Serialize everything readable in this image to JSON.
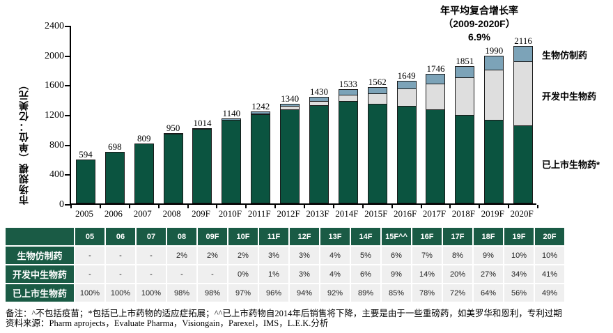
{
  "annotation": {
    "line1": "年平均复合增长率",
    "line2": "（2009-2020F）",
    "line3": "6.9%"
  },
  "y_axis": {
    "title": "市场规模（单位：亿美元）",
    "ticks": [
      0,
      400,
      800,
      1200,
      1600,
      2000,
      2400
    ]
  },
  "legend": {
    "biosimilar": "生物仿制药",
    "in_development": "开发中生物药",
    "marketed": "已上市生物药*"
  },
  "chart_data": {
    "type": "bar",
    "stacked": true,
    "title": "",
    "xlabel": "",
    "ylabel": "市场规模（单位：亿美元）",
    "ylim": [
      0,
      2400
    ],
    "grid": false,
    "legend_position": "right",
    "categories": [
      "2005",
      "2006",
      "2007",
      "2008",
      "209F",
      "2010F",
      "2011F",
      "2012F",
      "2013F",
      "2014F",
      "2015F",
      "2016F",
      "2017F",
      "2018F",
      "2019F",
      "2020F"
    ],
    "totals": [
      594,
      698,
      809,
      950,
      1014,
      1140,
      1242,
      1340,
      1430,
      1533,
      1562,
      1649,
      1746,
      1851,
      1990,
      2116
    ],
    "cagr_note": "年平均复合增长率（2009-2020F）6.9%",
    "series": [
      {
        "name": "已上市生物药*",
        "color": "#0B5440",
        "pct": [
          100,
          100,
          100,
          98,
          98,
          97,
          96,
          94,
          92,
          89,
          85,
          78,
          72,
          64,
          56,
          49
        ]
      },
      {
        "name": "开发中生物药",
        "color": "#DEDEDE",
        "pct": [
          0,
          0,
          0,
          0,
          0,
          0,
          1,
          3,
          4,
          6,
          9,
          14,
          20,
          27,
          34,
          41
        ]
      },
      {
        "name": "生物仿制药",
        "color": "#7CA3B8",
        "pct": [
          0,
          0,
          0,
          2,
          2,
          2,
          3,
          3,
          4,
          5,
          6,
          7,
          8,
          9,
          10,
          10
        ]
      }
    ]
  },
  "table": {
    "col_headers": [
      "05",
      "06",
      "07",
      "08",
      "09F",
      "10F",
      "11F",
      "12F",
      "13F",
      "14F",
      "15F^^",
      "16F",
      "17F",
      "18F",
      "19F",
      "20F"
    ],
    "rows": [
      {
        "label": "生物仿制药",
        "values": [
          "-",
          "-",
          "-",
          "2%",
          "2%",
          "2%",
          "3%",
          "3%",
          "4%",
          "5%",
          "6%",
          "7%",
          "8%",
          "9%",
          "10%",
          "10%"
        ]
      },
      {
        "label": "开发中生物药",
        "values": [
          "-",
          "-",
          "-",
          "-",
          "-",
          "0%",
          "1%",
          "3%",
          "4%",
          "6%",
          "9%",
          "14%",
          "20%",
          "27%",
          "34%",
          "41%"
        ]
      },
      {
        "label": "已上市生物药",
        "values": [
          "100%",
          "100%",
          "100%",
          "98%",
          "98%",
          "97%",
          "96%",
          "94%",
          "92%",
          "89%",
          "85%",
          "78%",
          "72%",
          "64%",
          "56%",
          "49%"
        ]
      }
    ]
  },
  "notes": {
    "line1": "备注：^不包括疫苗；*包括已上市药物的适应症拓展；^^已上市药物自2014年后销售将下降，主要是由于一些重磅药，如美罗华和恩利，专利过期",
    "line2": "资料来源：Pharm aprojects，Evaluate Pharma，Visiongain，Parexel，IMS，L.E.K.分析"
  },
  "colors": {
    "bar_marketed": "#0B5440",
    "bar_in_development": "#DEDEDE",
    "bar_biosimilar": "#7CA3B8",
    "bar_border": "#1a1a1a",
    "table_green": "#1A5B45",
    "table_cell_gray": "#EFEFEF",
    "text": "#000000"
  }
}
